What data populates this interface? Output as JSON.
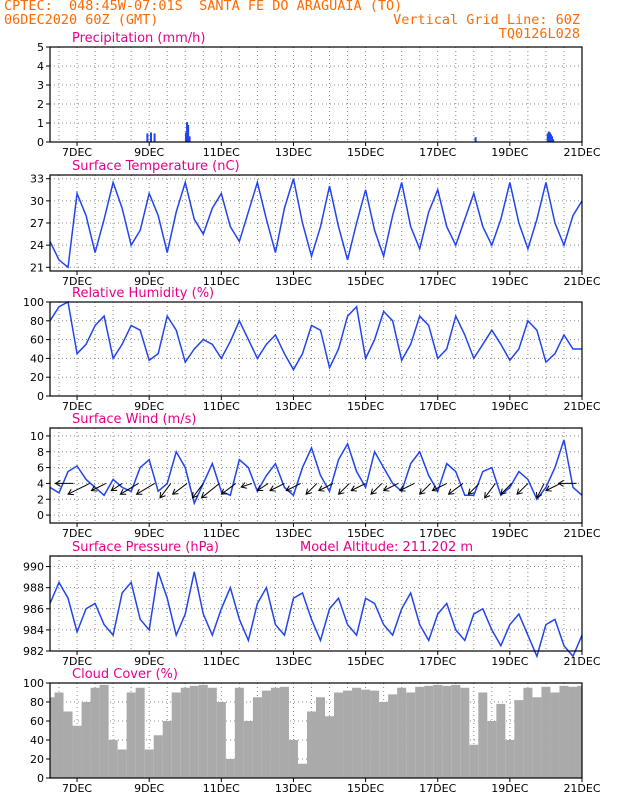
{
  "header": {
    "line1": "CPTEC:  048:45W-07:01S  SANTA FE DO ARAGUAIA (TO)",
    "line2_left": "06DEC2020 60Z (GMT)",
    "line2_right": "Vertical Grid Line: 60Z",
    "line3_right": "TQ0126L028"
  },
  "colors": {
    "title": "#e8008a",
    "header": "#ff6a00",
    "line": "#2244ee",
    "cloud": "#aaaaaa",
    "arrow": "#000000",
    "grid": "#888888"
  },
  "x_ticks": [
    "7DEC",
    "9DEC",
    "11DEC",
    "13DEC",
    "15DEC",
    "17DEC",
    "19DEC",
    "21DEC"
  ],
  "chart_data": [
    {
      "type": "bar",
      "title": "Precipitation (mm/h)",
      "ylim": [
        0,
        5
      ],
      "yticks": [
        "0",
        "1",
        "2",
        "3",
        "4",
        "5"
      ],
      "x_range": [
        6.25,
        21.0
      ],
      "series": [
        {
          "x": [
            8.95,
            9.05,
            9.15,
            10.02,
            10.05,
            10.08,
            10.12,
            18.05,
            20.05,
            20.08,
            20.11,
            20.14,
            20.17,
            20.2
          ],
          "values": [
            0.45,
            0.5,
            0.45,
            0.5,
            1.05,
            0.9,
            0.3,
            0.25,
            0.45,
            0.55,
            0.5,
            0.4,
            0.3,
            0.15
          ]
        }
      ]
    },
    {
      "type": "line",
      "title": "Surface Temperature (nC)",
      "ylim": [
        20.5,
        33.5
      ],
      "yticks": [
        "21",
        "24",
        "27",
        "30",
        "33"
      ],
      "x_range": [
        6.25,
        21.0
      ],
      "series": [
        {
          "x": [
            6.25,
            6.5,
            6.75,
            7.0,
            7.25,
            7.5,
            7.75,
            8.0,
            8.25,
            8.5,
            8.75,
            9.0,
            9.25,
            9.5,
            9.75,
            10.0,
            10.25,
            10.5,
            10.75,
            11.0,
            11.25,
            11.5,
            11.75,
            12.0,
            12.25,
            12.5,
            12.75,
            13.0,
            13.25,
            13.5,
            13.75,
            14.0,
            14.25,
            14.5,
            14.75,
            15.0,
            15.25,
            15.5,
            15.75,
            16.0,
            16.25,
            16.5,
            16.75,
            17.0,
            17.25,
            17.5,
            17.75,
            18.0,
            18.25,
            18.5,
            18.75,
            19.0,
            19.25,
            19.5,
            19.75,
            20.0,
            20.25,
            20.5,
            20.75,
            21.0
          ],
          "values": [
            24.5,
            22,
            21,
            31,
            28,
            23,
            27.5,
            32.5,
            29,
            24,
            26,
            31,
            28,
            23,
            28.5,
            32.5,
            27.5,
            25.5,
            29,
            31,
            26.5,
            24.5,
            28.5,
            32.5,
            27.5,
            23,
            29,
            33,
            27,
            22.5,
            26.5,
            32,
            26.5,
            22,
            27,
            31.5,
            26,
            22.5,
            28,
            32.5,
            26.5,
            23.5,
            28.5,
            31.5,
            26.5,
            24,
            27.5,
            31,
            26.5,
            24,
            27.5,
            32.5,
            27,
            23.5,
            27.5,
            32.5,
            27,
            24,
            28,
            30
          ]
        }
      ]
    },
    {
      "type": "line",
      "title": "Relative Humidity (%)",
      "ylim": [
        0,
        100
      ],
      "yticks": [
        "0",
        "20",
        "40",
        "60",
        "80",
        "100"
      ],
      "x_range": [
        6.25,
        21.0
      ],
      "series": [
        {
          "x": [
            6.25,
            6.5,
            6.75,
            7.0,
            7.25,
            7.5,
            7.75,
            8.0,
            8.25,
            8.5,
            8.75,
            9.0,
            9.25,
            9.5,
            9.75,
            10.0,
            10.25,
            10.5,
            10.75,
            11.0,
            11.25,
            11.5,
            11.75,
            12.0,
            12.25,
            12.5,
            12.75,
            13.0,
            13.25,
            13.5,
            13.75,
            14.0,
            14.25,
            14.5,
            14.75,
            15.0,
            15.25,
            15.5,
            15.75,
            16.0,
            16.25,
            16.5,
            16.75,
            17.0,
            17.25,
            17.5,
            17.75,
            18.0,
            18.25,
            18.5,
            18.75,
            19.0,
            19.25,
            19.5,
            19.75,
            20.0,
            20.25,
            20.5,
            20.75,
            21.0
          ],
          "values": [
            80,
            95,
            100,
            45,
            55,
            75,
            85,
            40,
            55,
            75,
            70,
            38,
            45,
            85,
            70,
            36,
            50,
            60,
            55,
            40,
            58,
            80,
            60,
            40,
            55,
            65,
            45,
            28,
            45,
            75,
            70,
            30,
            50,
            85,
            95,
            40,
            60,
            90,
            80,
            38,
            55,
            85,
            75,
            40,
            50,
            85,
            65,
            40,
            55,
            70,
            55,
            38,
            50,
            80,
            70,
            36,
            45,
            65,
            50,
            50
          ]
        }
      ]
    },
    {
      "type": "line",
      "title": "Surface Wind (m/s)",
      "ylim": [
        -1,
        11
      ],
      "yticks": [
        "0",
        "2",
        "4",
        "6",
        "8",
        "10"
      ],
      "x_range": [
        6.25,
        21.0
      ],
      "series": [
        {
          "x": [
            6.25,
            6.5,
            6.75,
            7.0,
            7.25,
            7.5,
            7.75,
            8.0,
            8.25,
            8.5,
            8.75,
            9.0,
            9.25,
            9.5,
            9.75,
            10.0,
            10.25,
            10.5,
            10.75,
            11.0,
            11.25,
            11.5,
            11.75,
            12.0,
            12.25,
            12.5,
            12.75,
            13.0,
            13.25,
            13.5,
            13.75,
            14.0,
            14.25,
            14.5,
            14.75,
            15.0,
            15.25,
            15.5,
            15.75,
            16.0,
            16.25,
            16.5,
            16.75,
            17.0,
            17.25,
            17.5,
            17.75,
            18.0,
            18.25,
            18.5,
            18.75,
            19.0,
            19.25,
            19.5,
            19.75,
            20.0,
            20.25,
            20.5,
            20.75,
            21.0
          ],
          "values": [
            3.5,
            2.8,
            5.5,
            6.2,
            4.5,
            3.5,
            2.5,
            4.5,
            3.5,
            3.0,
            6.0,
            7.0,
            3.0,
            4.0,
            8.0,
            6.0,
            1.5,
            4.0,
            6.5,
            3.0,
            2.5,
            7.0,
            6.0,
            3.0,
            5.0,
            6.5,
            3.5,
            2.5,
            6.0,
            8.5,
            5.0,
            3.0,
            7.0,
            9.0,
            5.5,
            3.5,
            8.0,
            6.0,
            4.0,
            3.0,
            6.5,
            8.0,
            5.0,
            3.0,
            6.5,
            5.5,
            2.5,
            2.5,
            5.5,
            6.0,
            2.5,
            3.5,
            5.5,
            4.5,
            2.0,
            3.5,
            6.0,
            9.5,
            3.5,
            2.5
          ]
        }
      ],
      "arrows": {
        "x": [
          6.9,
          7.35,
          7.8,
          8.25,
          8.7,
          9.15,
          9.6,
          10.05,
          10.5,
          10.95,
          11.4,
          11.85,
          12.3,
          12.75,
          13.2,
          13.65,
          14.1,
          14.55,
          15.0,
          15.45,
          15.9,
          16.35,
          16.8,
          17.25,
          17.7,
          18.15,
          18.6,
          19.05,
          19.5,
          19.95,
          20.4,
          20.85
        ],
        "dx": [
          -5,
          -6,
          -4,
          -3,
          -5,
          -5,
          -3,
          -4,
          -3,
          -5,
          -4,
          -3,
          -3,
          -4,
          -4,
          -3,
          -4,
          -3,
          -4,
          -3,
          -4,
          -4,
          -3,
          -4,
          -4,
          -3,
          -3,
          -3,
          -3,
          -2,
          -4,
          -5
        ],
        "dy": [
          0,
          3,
          2,
          2,
          3,
          3,
          4,
          3,
          4,
          4,
          3,
          1,
          2,
          2,
          2,
          3,
          2,
          3,
          2,
          3,
          2,
          2,
          3,
          2,
          3,
          3,
          4,
          3,
          3,
          4,
          2,
          0
        ]
      }
    },
    {
      "type": "line",
      "title": "Surface Pressure (hPa)",
      "subtitle": "Model Altitude: 211.202 m",
      "ylim": [
        982,
        991
      ],
      "yticks": [
        "982",
        "984",
        "986",
        "988",
        "990"
      ],
      "x_range": [
        6.25,
        21.0
      ],
      "series": [
        {
          "x": [
            6.25,
            6.5,
            6.75,
            7.0,
            7.25,
            7.5,
            7.75,
            8.0,
            8.25,
            8.5,
            8.75,
            9.0,
            9.25,
            9.5,
            9.75,
            10.0,
            10.25,
            10.5,
            10.75,
            11.0,
            11.25,
            11.5,
            11.75,
            12.0,
            12.25,
            12.5,
            12.75,
            13.0,
            13.25,
            13.5,
            13.75,
            14.0,
            14.25,
            14.5,
            14.75,
            15.0,
            15.25,
            15.5,
            15.75,
            16.0,
            16.25,
            16.5,
            16.75,
            17.0,
            17.25,
            17.5,
            17.75,
            18.0,
            18.25,
            18.5,
            18.75,
            19.0,
            19.25,
            19.5,
            19.75,
            20.0,
            20.25,
            20.5,
            20.75,
            21.0
          ],
          "values": [
            986.5,
            988.5,
            987.0,
            983.8,
            986.0,
            986.5,
            984.5,
            983.5,
            987.5,
            988.5,
            985.0,
            984.0,
            989.5,
            987.0,
            983.5,
            985.5,
            989.5,
            985.5,
            983.5,
            986.0,
            988.0,
            985.0,
            983.0,
            986.5,
            988.0,
            984.5,
            983.5,
            987.0,
            987.5,
            985.0,
            983.0,
            986.0,
            987.0,
            984.5,
            983.5,
            987.0,
            986.5,
            984.5,
            983.5,
            986.0,
            987.5,
            984.5,
            983.0,
            985.5,
            986.5,
            984.0,
            983.0,
            985.5,
            986.0,
            984.0,
            982.5,
            984.5,
            985.5,
            983.5,
            981.5,
            984.5,
            985.0,
            982.5,
            981.5,
            983.5
          ]
        }
      ]
    },
    {
      "type": "bar",
      "title": "Cloud Cover (%)",
      "ylim": [
        0,
        100
      ],
      "yticks": [
        "0",
        "20",
        "40",
        "60",
        "80",
        "100"
      ],
      "x_range": [
        6.25,
        21.0
      ],
      "series": [
        {
          "x": [
            6.25,
            6.5,
            6.75,
            7.0,
            7.25,
            7.5,
            7.75,
            8.0,
            8.25,
            8.5,
            8.75,
            9.0,
            9.25,
            9.5,
            9.75,
            10.0,
            10.25,
            10.5,
            10.75,
            11.0,
            11.25,
            11.5,
            11.75,
            12.0,
            12.25,
            12.5,
            12.75,
            13.0,
            13.25,
            13.5,
            13.75,
            14.0,
            14.25,
            14.5,
            14.75,
            15.0,
            15.25,
            15.5,
            15.75,
            16.0,
            16.25,
            16.5,
            16.75,
            17.0,
            17.25,
            17.5,
            17.75,
            18.0,
            18.25,
            18.5,
            18.75,
            19.0,
            19.25,
            19.5,
            19.75,
            20.0,
            20.25,
            20.5,
            20.75,
            21.0
          ],
          "values": [
            85,
            90,
            70,
            55,
            80,
            95,
            98,
            40,
            30,
            90,
            95,
            30,
            45,
            60,
            90,
            95,
            97,
            98,
            95,
            80,
            20,
            95,
            60,
            85,
            92,
            95,
            96,
            40,
            15,
            70,
            85,
            65,
            90,
            92,
            95,
            93,
            92,
            80,
            88,
            95,
            90,
            96,
            97,
            98,
            97,
            98,
            95,
            35,
            90,
            60,
            78,
            40,
            82,
            95,
            85,
            96,
            90,
            97,
            96,
            97
          ]
        }
      ]
    }
  ]
}
